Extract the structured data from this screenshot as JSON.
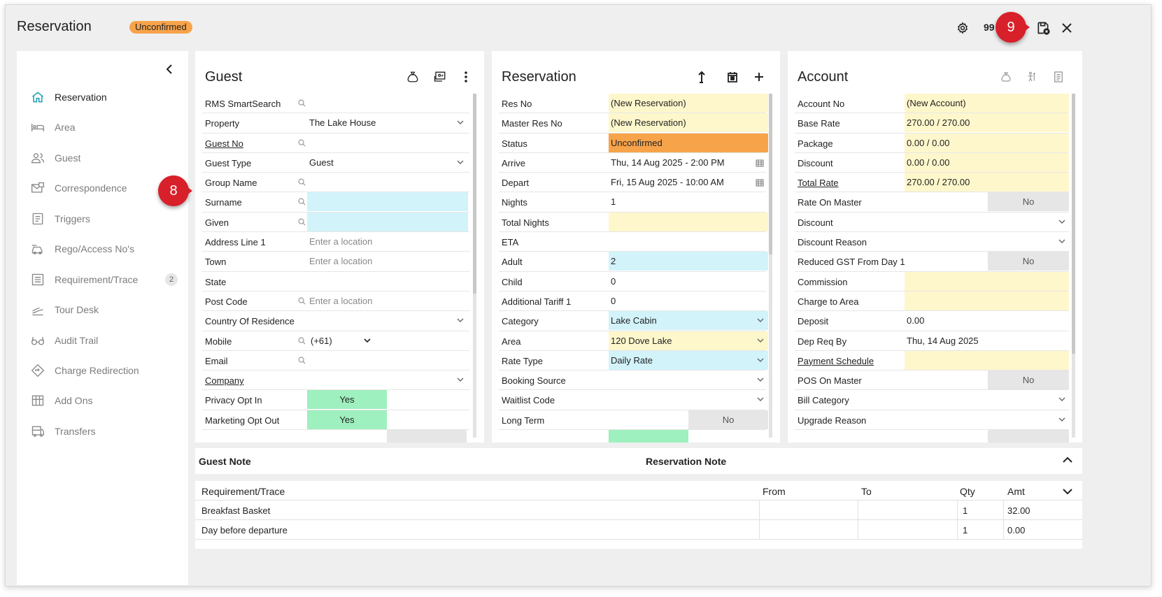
{
  "header": {
    "title": "Reservation",
    "status_badge": "Unconfirmed",
    "count": "99",
    "callout_8": "8",
    "callout_9": "9"
  },
  "sidebar": {
    "items": [
      {
        "label": "Reservation",
        "icon": "home-icon",
        "active": true
      },
      {
        "label": "Area",
        "icon": "bed-icon"
      },
      {
        "label": "Guest",
        "icon": "users-icon"
      },
      {
        "label": "Correspondence",
        "icon": "correspondence-icon"
      },
      {
        "label": "Triggers",
        "icon": "triggers-icon"
      },
      {
        "label": "Rego/Access No's",
        "icon": "car-icon"
      },
      {
        "label": "Requirement/Trace",
        "icon": "list-icon",
        "count": "2"
      },
      {
        "label": "Tour Desk",
        "icon": "tour-icon"
      },
      {
        "label": "Audit Trail",
        "icon": "glasses-icon"
      },
      {
        "label": "Charge Redirection",
        "icon": "redirect-icon"
      },
      {
        "label": "Add Ons",
        "icon": "grid-icon"
      },
      {
        "label": "Transfers",
        "icon": "bus-icon"
      }
    ]
  },
  "guest": {
    "title": "Guest",
    "rows": {
      "smartsearch": {
        "label": "RMS SmartSearch"
      },
      "property": {
        "label": "Property",
        "value": "The Lake House"
      },
      "guest_no": {
        "label": "Guest No"
      },
      "guest_type": {
        "label": "Guest Type",
        "value": "Guest"
      },
      "group_name": {
        "label": "Group Name"
      },
      "surname": {
        "label": "Surname"
      },
      "given": {
        "label": "Given"
      },
      "address1": {
        "label": "Address Line 1",
        "placeholder": "Enter a location"
      },
      "town": {
        "label": "Town",
        "placeholder": "Enter a location"
      },
      "state": {
        "label": "State"
      },
      "postcode": {
        "label": "Post Code",
        "placeholder": "Enter a location"
      },
      "country": {
        "label": "Country Of Residence"
      },
      "mobile": {
        "label": "Mobile",
        "value": "(+61)"
      },
      "email": {
        "label": "Email"
      },
      "company": {
        "label": "Company"
      },
      "privacy": {
        "label": "Privacy Opt In",
        "value": "Yes"
      },
      "marketing": {
        "label": "Marketing Opt Out",
        "value": "Yes"
      }
    }
  },
  "reservation": {
    "title": "Reservation",
    "rows": {
      "res_no": {
        "label": "Res No",
        "value": "(New Reservation)"
      },
      "master_res_no": {
        "label": "Master Res No",
        "value": "(New Reservation)"
      },
      "status": {
        "label": "Status",
        "value": "Unconfirmed"
      },
      "arrive": {
        "label": "Arrive",
        "value": "Thu, 14 Aug 2025 - 2:00 PM"
      },
      "depart": {
        "label": "Depart",
        "value": "Fri, 15 Aug 2025 - 10:00 AM"
      },
      "nights": {
        "label": "Nights",
        "value": "1"
      },
      "total_nights": {
        "label": "Total Nights"
      },
      "eta": {
        "label": "ETA"
      },
      "adult": {
        "label": "Adult",
        "value": "2"
      },
      "child": {
        "label": "Child",
        "value": "0"
      },
      "additional_tariff": {
        "label": "Additional Tariff 1",
        "value": "0"
      },
      "category": {
        "label": "Category",
        "value": "Lake Cabin"
      },
      "area": {
        "label": "Area",
        "value": "120 Dove Lake"
      },
      "rate_type": {
        "label": "Rate Type",
        "value": "Daily Rate"
      },
      "booking_source": {
        "label": "Booking Source"
      },
      "waitlist_code": {
        "label": "Waitlist Code"
      },
      "long_term": {
        "label": "Long Term",
        "value": "No"
      }
    }
  },
  "account": {
    "title": "Account",
    "rows": {
      "account_no": {
        "label": "Account No",
        "value": "(New Account)"
      },
      "base_rate": {
        "label": "Base Rate",
        "value": "270.00 / 270.00"
      },
      "package": {
        "label": "Package",
        "value": "0.00 / 0.00"
      },
      "discount_amt": {
        "label": "Discount",
        "value": "0.00 / 0.00"
      },
      "total_rate": {
        "label": "Total Rate",
        "value": "270.00 / 270.00"
      },
      "rate_on_master": {
        "label": "Rate On Master",
        "value": "No"
      },
      "discount": {
        "label": "Discount"
      },
      "discount_reason": {
        "label": "Discount Reason"
      },
      "reduced_gst": {
        "label": "Reduced GST From Day 1",
        "value": "No"
      },
      "commission": {
        "label": "Commission"
      },
      "charge_to_area": {
        "label": "Charge to Area"
      },
      "deposit": {
        "label": "Deposit",
        "value": "0.00"
      },
      "dep_req_by": {
        "label": "Dep Req By",
        "value": "Thu, 14 Aug 2025"
      },
      "payment_schedule": {
        "label": "Payment Schedule"
      },
      "pos_on_master": {
        "label": "POS On Master",
        "value": "No"
      },
      "bill_category": {
        "label": "Bill Category"
      },
      "upgrade_reason": {
        "label": "Upgrade Reason"
      }
    }
  },
  "notes": {
    "guest_note": "Guest Note",
    "reservation_note": "Reservation Note"
  },
  "requirements": {
    "headers": {
      "name": "Requirement/Trace",
      "from": "From",
      "to": "To",
      "qty": "Qty",
      "amt": "Amt"
    },
    "rows": [
      {
        "name": "Breakfast Basket",
        "from": "",
        "to": "",
        "qty": "1",
        "amt": "32.00"
      },
      {
        "name": "Day before departure",
        "from": "",
        "to": "",
        "qty": "1",
        "amt": "0.00"
      }
    ]
  },
  "colors": {
    "unconfirmed_orange": "#f7a34a",
    "highlight_yellow": "#fff7cc",
    "highlight_blue": "#d2f3fa",
    "yes_green": "#9ef0be",
    "callout_red": "#d8202a"
  }
}
